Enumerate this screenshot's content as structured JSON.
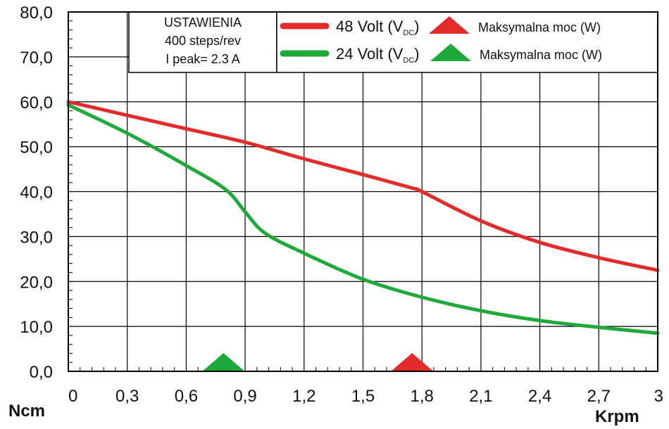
{
  "chart_data": {
    "type": "line",
    "xlabel": "Krpm",
    "ylabel": "Ncm",
    "xlim": [
      0,
      3
    ],
    "ylim": [
      0,
      80
    ],
    "grid": true,
    "x_ticks": [
      "0",
      "0,3",
      "0,6",
      "0,9",
      "1,2",
      "1,5",
      "1,8",
      "2,1",
      "2,4",
      "2,7",
      "3"
    ],
    "y_ticks": [
      "0,0",
      "10,0",
      "20,0",
      "30,0",
      "40,0",
      "50,0",
      "60,0",
      "70,0",
      "80,0"
    ],
    "settings_box": [
      "USTAWIENIA",
      "400 steps/rev",
      "I peak= 2.3 A"
    ],
    "series": [
      {
        "name": "48 Volt (VDC)",
        "label_main": "48 Volt (V",
        "label_sub": "DC",
        "label_end": ")",
        "color": "#e32b2b",
        "x": [
          0,
          0.3,
          0.6,
          0.9,
          1.2,
          1.5,
          1.75,
          1.8,
          2.1,
          2.4,
          2.7,
          3.0
        ],
        "y": [
          60.0,
          57.0,
          54.0,
          51.0,
          47.3,
          43.8,
          40.8,
          40.0,
          33.5,
          28.7,
          25.3,
          22.5
        ],
        "max_power_marker_x": 1.75,
        "max_power_label": "Maksymalna moc (W)"
      },
      {
        "name": "24 Volt (VDC)",
        "label_main": "24 Volt (V",
        "label_sub": "DC",
        "label_end": ")",
        "color": "#1fa93a",
        "x": [
          0,
          0.3,
          0.6,
          0.8,
          0.9,
          1.0,
          1.2,
          1.5,
          1.8,
          2.1,
          2.4,
          2.7,
          3.0
        ],
        "y": [
          59.3,
          53.0,
          45.8,
          40.5,
          35.5,
          30.8,
          26.3,
          20.5,
          16.5,
          13.5,
          11.3,
          9.8,
          8.5
        ],
        "max_power_marker_x": 0.79,
        "max_power_label": "Maksymalna moc (W)"
      }
    ]
  }
}
